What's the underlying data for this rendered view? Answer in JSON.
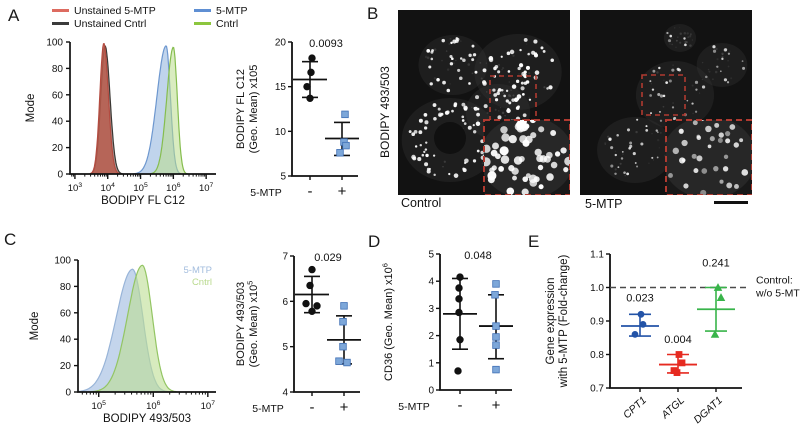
{
  "figure": {
    "panels": {
      "A": {
        "label": "A",
        "legend": [
          {
            "label": "Unstained 5-MTP",
            "color": "#dd6b60"
          },
          {
            "label": "5-MTP",
            "color": "#5f8fd3"
          },
          {
            "label": "Unstained Cntrl",
            "color": "#3b3b3b"
          },
          {
            "label": "Cntrl",
            "color": "#8cc63e"
          }
        ]
      },
      "B": {
        "label": "B",
        "side_label": "BODIPY 493/503",
        "captions": [
          "Control",
          "5-MTP"
        ],
        "highlight_color": "#b03a30",
        "scale_bar": "present"
      },
      "C": {
        "label": "C"
      },
      "D": {
        "label": "D"
      },
      "E": {
        "label": "E"
      }
    }
  },
  "chart_data": [
    {
      "id": "hist_A",
      "panel": "A",
      "type": "area",
      "subtype": "flow-cytometry-histogram",
      "xlabel": "BODIPY FL C12",
      "ylabel": "Mode",
      "x_scale": "log10",
      "x_tick_exponents": [
        3,
        4,
        5,
        6,
        7
      ],
      "x_log_range": [
        2.85,
        7.3
      ],
      "ylim": [
        0,
        100
      ],
      "y_ticks": [
        0,
        20,
        40,
        60,
        80,
        100
      ],
      "series": [
        {
          "name": "Unstained Cntrl",
          "peak_log10": 3.92,
          "sigma_left": 0.13,
          "sigma_right": 0.15,
          "height": 97,
          "stroke": "#3a3632",
          "fill": "rgba(60,45,40,0.45)"
        },
        {
          "name": "Unstained 5-MTP",
          "peak_log10": 3.88,
          "sigma_left": 0.12,
          "sigma_right": 0.14,
          "height": 99,
          "stroke": "#b44b40",
          "fill": "rgba(185,90,75,0.85)"
        },
        {
          "name": "5-MTP",
          "peak_log10": 5.78,
          "sigma_left": 0.28,
          "sigma_right": 0.13,
          "height": 97,
          "stroke": "#6d97cf",
          "fill": "rgba(150,184,224,0.6)"
        },
        {
          "name": "Cntrl",
          "peak_log10": 6.0,
          "sigma_left": 0.2,
          "sigma_right": 0.12,
          "height": 96,
          "stroke": "#85bd4e",
          "fill": "rgba(186,220,140,0.55)"
        }
      ]
    },
    {
      "id": "scatter_A",
      "panel": "A",
      "type": "scatter",
      "ylabel_lines": [
        "BODIPY FL C12",
        "(Geo. Mean) x105"
      ],
      "ylabel_sup": "",
      "p_label": "0.0093",
      "row_label": "5-MTP",
      "ylim": [
        5,
        20
      ],
      "y_ticks": [
        5,
        10,
        15,
        20
      ],
      "groups": [
        {
          "tick": "-",
          "marker": "circle",
          "point_fill": "#111111",
          "point_stroke": "#111111",
          "err_color": "#111111",
          "mean": 15.8,
          "err_low": 13.8,
          "err_high": 17.8,
          "points": [
            [
              18.2,
              2
            ],
            [
              16.6,
              1
            ],
            [
              15.0,
              -3
            ],
            [
              13.7,
              0
            ]
          ]
        },
        {
          "tick": "+",
          "marker": "square",
          "point_fill": "#7da7d9",
          "point_stroke": "#3f6fb5",
          "err_color": "#111111",
          "mean": 9.2,
          "err_low": 7.3,
          "err_high": 11.0,
          "points": [
            [
              11.9,
              3
            ],
            [
              8.8,
              2
            ],
            [
              8.4,
              4
            ],
            [
              7.6,
              -2
            ]
          ]
        }
      ]
    },
    {
      "id": "hist_C",
      "panel": "C",
      "type": "area",
      "subtype": "flow-cytometry-histogram",
      "xlabel": "BODIPY 493/503",
      "ylabel": "Mode",
      "x_scale": "log10",
      "x_tick_exponents": [
        5,
        6,
        7
      ],
      "x_log_range": [
        4.62,
        7.15
      ],
      "ylim": [
        0,
        100
      ],
      "y_ticks": [
        0,
        20,
        40,
        60,
        80,
        100
      ],
      "series": [
        {
          "name": "5-MTP",
          "peak_log10": 5.62,
          "sigma_left": 0.3,
          "sigma_right": 0.19,
          "height": 93,
          "stroke": "#98b4d8",
          "fill": "rgba(176,199,229,0.75)"
        },
        {
          "name": "Cntrl",
          "peak_log10": 5.8,
          "sigma_left": 0.27,
          "sigma_right": 0.18,
          "height": 96,
          "stroke": "#93c563",
          "fill": "rgba(189,222,146,0.6)"
        }
      ],
      "inside_legend": [
        {
          "label": "5-MTP",
          "color": "#a3bdde"
        },
        {
          "label": "Cntrl",
          "color": "#b8d98c"
        }
      ]
    },
    {
      "id": "scatter_C",
      "panel": "C",
      "type": "scatter",
      "ylabel_lines": [
        "BODIPY 493/503",
        "(Geo. Mean) x10"
      ],
      "ylabel_sup": "5",
      "p_label": "0.029",
      "row_label": "5-MTP",
      "ylim": [
        4,
        7
      ],
      "y_ticks": [
        4,
        5,
        6,
        7
      ],
      "groups": [
        {
          "tick": "-",
          "marker": "circle",
          "point_fill": "#111111",
          "point_stroke": "#111111",
          "err_color": "#111111",
          "mean": 6.15,
          "err_low": 5.75,
          "err_high": 6.55,
          "points": [
            [
              6.7,
              0
            ],
            [
              6.35,
              -2
            ],
            [
              5.95,
              -6
            ],
            [
              5.9,
              5
            ],
            [
              5.78,
              0
            ]
          ]
        },
        {
          "tick": "+",
          "marker": "square",
          "point_fill": "#7da7d9",
          "point_stroke": "#3f6fb5",
          "err_color": "#111111",
          "mean": 5.15,
          "err_low": 4.62,
          "err_high": 5.68,
          "points": [
            [
              5.9,
              0
            ],
            [
              5.55,
              -1
            ],
            [
              5.0,
              -1
            ],
            [
              4.68,
              -5
            ],
            [
              4.65,
              3
            ]
          ]
        }
      ]
    },
    {
      "id": "scatter_D",
      "panel": "D",
      "type": "scatter",
      "ylabel_lines": [
        "CD36 (Geo. Mean) x10"
      ],
      "ylabel_sup": "6",
      "p_label": "0.048",
      "row_label": "5-MTP",
      "ylim": [
        0,
        5
      ],
      "y_ticks": [
        0,
        1,
        2,
        3,
        4,
        5
      ],
      "groups": [
        {
          "tick": "-",
          "marker": "circle",
          "point_fill": "#111111",
          "point_stroke": "#111111",
          "err_color": "#111111",
          "mean": 2.8,
          "err_low": 1.5,
          "err_high": 4.1,
          "points": [
            [
              4.15,
              0
            ],
            [
              3.75,
              -1
            ],
            [
              3.35,
              -1
            ],
            [
              2.85,
              -1
            ],
            [
              1.85,
              0
            ],
            [
              0.7,
              -2
            ]
          ]
        },
        {
          "tick": "+",
          "marker": "square",
          "point_fill": "#7da7d9",
          "point_stroke": "#3f6fb5",
          "err_color": "#111111",
          "mean": 2.35,
          "err_low": 1.15,
          "err_high": 3.5,
          "points": [
            [
              3.9,
              0
            ],
            [
              3.5,
              -1
            ],
            [
              2.35,
              0
            ],
            [
              1.95,
              0
            ],
            [
              1.65,
              0
            ],
            [
              0.75,
              0
            ]
          ]
        }
      ]
    },
    {
      "id": "scatter_E",
      "panel": "E",
      "type": "scatter",
      "ylabel_lines": [
        "Gene expression",
        "with 5-MTP (Fold-change)"
      ],
      "ylabel_sup": "",
      "ylim": [
        0.7,
        1.1
      ],
      "y_ticks": [
        0.7,
        0.8,
        0.9,
        1.0,
        1.1
      ],
      "tick_decimals": 1,
      "ref_line": {
        "value": 1.0,
        "style": "dashed",
        "color": "#4a4a4a",
        "label_lines": [
          "Control:",
          "w/o 5-MTP"
        ]
      },
      "groups": [
        {
          "tick": "CPT1",
          "p": "0.023",
          "p_y": 0.958,
          "marker": "circle",
          "color": "#2353a7",
          "mean": 0.885,
          "err_low": 0.855,
          "err_high": 0.92,
          "points": [
            [
              0.92,
              1
            ],
            [
              0.89,
              3
            ],
            [
              0.86,
              -5
            ]
          ]
        },
        {
          "tick": "ATGL",
          "p": "0.004",
          "p_y": 0.835,
          "marker": "square",
          "color": "#e62a20",
          "mean": 0.77,
          "err_low": 0.745,
          "err_high": 0.8,
          "points": [
            [
              0.8,
              1
            ],
            [
              0.775,
              4
            ],
            [
              0.752,
              -4
            ],
            [
              0.746,
              -1
            ]
          ]
        },
        {
          "tick": "DGAT1",
          "p": "0.241",
          "p_y": 1.062,
          "marker": "triangle",
          "color": "#38b44a",
          "mean": 0.935,
          "err_low": 0.87,
          "err_high": 1.0,
          "points": [
            [
              1.0,
              2
            ],
            [
              0.97,
              5
            ],
            [
              0.86,
              -1
            ]
          ]
        }
      ]
    }
  ]
}
